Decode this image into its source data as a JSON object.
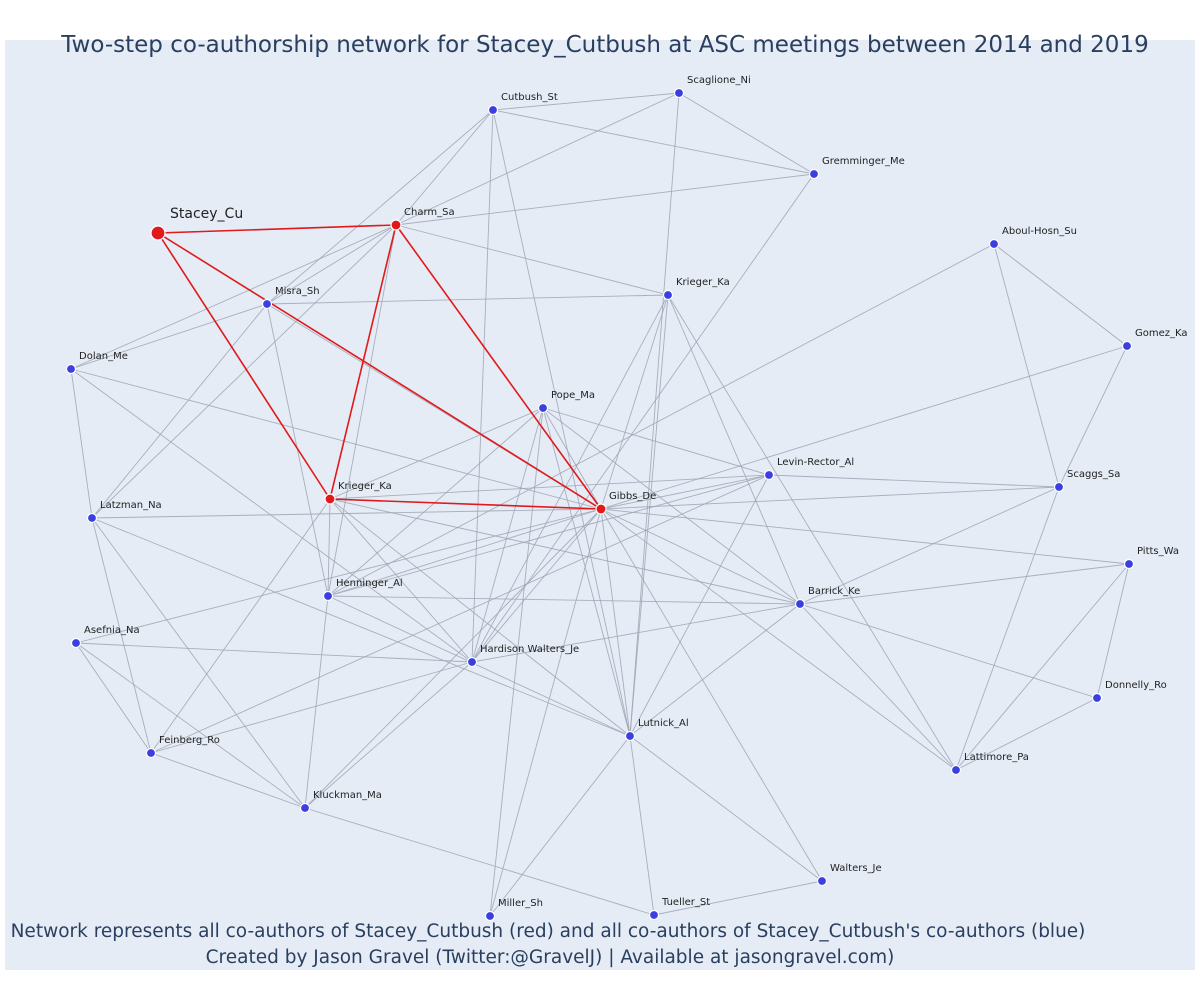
{
  "title": "Two-step co-authorship network for Stacey_Cutbush at ASC meetings between 2014 and 2019",
  "caption_line1": "Network represents all co-authors of Stacey_Cutbush (red) and all co-authors of Stacey_Cutbush's co-authors (blue)",
  "caption_line2": "Created by Jason Gravel (Twitter:@GravelJ) | Available at jasongravel.com)",
  "colors": {
    "background": "#e5ecf6",
    "red": "#e0191b",
    "blue": "#3b3fe0",
    "edge": "#9ea4b4"
  },
  "nodes": [
    {
      "id": "stacey",
      "label": "Stacey_Cu",
      "group": "ego"
    },
    {
      "id": "charm",
      "label": "Charm_Sa",
      "group": "red"
    },
    {
      "id": "kriegerR",
      "label": "Krieger_Ka",
      "group": "red"
    },
    {
      "id": "gibbs",
      "label": "Gibbs_De",
      "group": "red"
    },
    {
      "id": "misra",
      "label": "Misra_Sh",
      "group": "blue"
    },
    {
      "id": "cutbush",
      "label": "Cutbush_St",
      "group": "blue"
    },
    {
      "id": "scaglione",
      "label": "Scaglione_Ni",
      "group": "blue"
    },
    {
      "id": "gremminger",
      "label": "Gremminger_Me",
      "group": "blue"
    },
    {
      "id": "kriegerB",
      "label": "Krieger_Ka",
      "group": "blue"
    },
    {
      "id": "aboul",
      "label": "Aboul-Hosn_Su",
      "group": "blue"
    },
    {
      "id": "gomez",
      "label": "Gomez_Ka",
      "group": "blue"
    },
    {
      "id": "dolan",
      "label": "Dolan_Me",
      "group": "blue"
    },
    {
      "id": "pope",
      "label": "Pope_Ma",
      "group": "blue"
    },
    {
      "id": "levin",
      "label": "Levin-Rector_Al",
      "group": "blue"
    },
    {
      "id": "scaggs",
      "label": "Scaggs_Sa",
      "group": "blue"
    },
    {
      "id": "latzman",
      "label": "Latzman_Na",
      "group": "blue"
    },
    {
      "id": "pitts",
      "label": "Pitts_Wa",
      "group": "blue"
    },
    {
      "id": "henninger",
      "label": "Henninger_Al",
      "group": "blue"
    },
    {
      "id": "barrick",
      "label": "Barrick_Ke",
      "group": "blue"
    },
    {
      "id": "asefnia",
      "label": "Asefnia_Na",
      "group": "blue"
    },
    {
      "id": "hardison",
      "label": "Hardison Walters_Je",
      "group": "blue"
    },
    {
      "id": "donnelly",
      "label": "Donnelly_Ro",
      "group": "blue"
    },
    {
      "id": "lutnick",
      "label": "Lutnick_Al",
      "group": "blue"
    },
    {
      "id": "feinberg",
      "label": "Feinberg_Ro",
      "group": "blue"
    },
    {
      "id": "lattimore",
      "label": "Lattimore_Pa",
      "group": "blue"
    },
    {
      "id": "kluckman",
      "label": "Kluckman_Ma",
      "group": "blue"
    },
    {
      "id": "walters",
      "label": "Walters_Je",
      "group": "blue"
    },
    {
      "id": "miller",
      "label": "Miller_Sh",
      "group": "blue"
    },
    {
      "id": "tueller",
      "label": "Tueller_St",
      "group": "blue"
    }
  ],
  "edges": [
    [
      "stacey",
      "charm"
    ],
    [
      "stacey",
      "kriegerR"
    ],
    [
      "stacey",
      "gibbs"
    ],
    [
      "charm",
      "kriegerR"
    ],
    [
      "charm",
      "gibbs"
    ],
    [
      "kriegerR",
      "gibbs"
    ],
    [
      "misra",
      "gibbs"
    ],
    [
      "cutbush",
      "scaglione"
    ],
    [
      "cutbush",
      "gremminger"
    ],
    [
      "cutbush",
      "charm"
    ],
    [
      "cutbush",
      "misra"
    ],
    [
      "cutbush",
      "lutnick"
    ],
    [
      "cutbush",
      "hardison"
    ],
    [
      "scaglione",
      "charm"
    ],
    [
      "scaglione",
      "gremminger"
    ],
    [
      "scaglione",
      "lutnick"
    ],
    [
      "gremminger",
      "charm"
    ],
    [
      "gremminger",
      "hardison"
    ],
    [
      "charm",
      "misra"
    ],
    [
      "charm",
      "kriegerB"
    ],
    [
      "charm",
      "dolan"
    ],
    [
      "charm",
      "latzman"
    ],
    [
      "charm",
      "henninger"
    ],
    [
      "misra",
      "kriegerB"
    ],
    [
      "misra",
      "henninger"
    ],
    [
      "misra",
      "latzman"
    ],
    [
      "misra",
      "dolan"
    ],
    [
      "kriegerB",
      "gibbs"
    ],
    [
      "kriegerB",
      "barrick"
    ],
    [
      "kriegerB",
      "lattimore"
    ],
    [
      "kriegerB",
      "lutnick"
    ],
    [
      "kriegerB",
      "hardison"
    ],
    [
      "dolan",
      "latzman"
    ],
    [
      "dolan",
      "gibbs"
    ],
    [
      "dolan",
      "hardison"
    ],
    [
      "aboul",
      "gomez"
    ],
    [
      "aboul",
      "scaggs"
    ],
    [
      "aboul",
      "henninger"
    ],
    [
      "gomez",
      "scaggs"
    ],
    [
      "gomez",
      "gibbs"
    ],
    [
      "pope",
      "gibbs"
    ],
    [
      "pope",
      "kriegerR"
    ],
    [
      "pope",
      "levin"
    ],
    [
      "pope",
      "barrick"
    ],
    [
      "pope",
      "lutnick"
    ],
    [
      "pope",
      "henninger"
    ],
    [
      "pope",
      "hardison"
    ],
    [
      "pope",
      "miller"
    ],
    [
      "levin",
      "scaggs"
    ],
    [
      "levin",
      "gibbs"
    ],
    [
      "levin",
      "kriegerR"
    ],
    [
      "levin",
      "lutnick"
    ],
    [
      "levin",
      "henninger"
    ],
    [
      "levin",
      "feinberg"
    ],
    [
      "scaggs",
      "gibbs"
    ],
    [
      "scaggs",
      "barrick"
    ],
    [
      "scaggs",
      "lattimore"
    ],
    [
      "latzman",
      "gibbs"
    ],
    [
      "latzman",
      "feinberg"
    ],
    [
      "latzman",
      "kluckman"
    ],
    [
      "latzman",
      "lutnick"
    ],
    [
      "kriegerR",
      "henninger"
    ],
    [
      "kriegerR",
      "barrick"
    ],
    [
      "kriegerR",
      "hardison"
    ],
    [
      "kriegerR",
      "feinberg"
    ],
    [
      "kriegerR",
      "lutnick"
    ],
    [
      "gibbs",
      "henninger"
    ],
    [
      "gibbs",
      "barrick"
    ],
    [
      "gibbs",
      "hardison"
    ],
    [
      "gibbs",
      "lutnick"
    ],
    [
      "gibbs",
      "lattimore"
    ],
    [
      "gibbs",
      "walters"
    ],
    [
      "gibbs",
      "kluckman"
    ],
    [
      "gibbs",
      "asefnia"
    ],
    [
      "gibbs",
      "pitts"
    ],
    [
      "gibbs",
      "miller"
    ],
    [
      "pitts",
      "barrick"
    ],
    [
      "pitts",
      "donnelly"
    ],
    [
      "pitts",
      "lattimore"
    ],
    [
      "henninger",
      "barrick"
    ],
    [
      "henninger",
      "lutnick"
    ],
    [
      "henninger",
      "kluckman"
    ],
    [
      "barrick",
      "hardison"
    ],
    [
      "barrick",
      "donnelly"
    ],
    [
      "barrick",
      "lutnick"
    ],
    [
      "barrick",
      "lattimore"
    ],
    [
      "asefnia",
      "hardison"
    ],
    [
      "asefnia",
      "feinberg"
    ],
    [
      "asefnia",
      "kluckman"
    ],
    [
      "hardison",
      "feinberg"
    ],
    [
      "hardison",
      "kluckman"
    ],
    [
      "donnelly",
      "lattimore"
    ],
    [
      "lutnick",
      "walters"
    ],
    [
      "lutnick",
      "miller"
    ],
    [
      "lutnick",
      "tueller"
    ],
    [
      "feinberg",
      "kluckman"
    ],
    [
      "kluckman",
      "tueller"
    ],
    [
      "walters",
      "tueller"
    ]
  ]
}
